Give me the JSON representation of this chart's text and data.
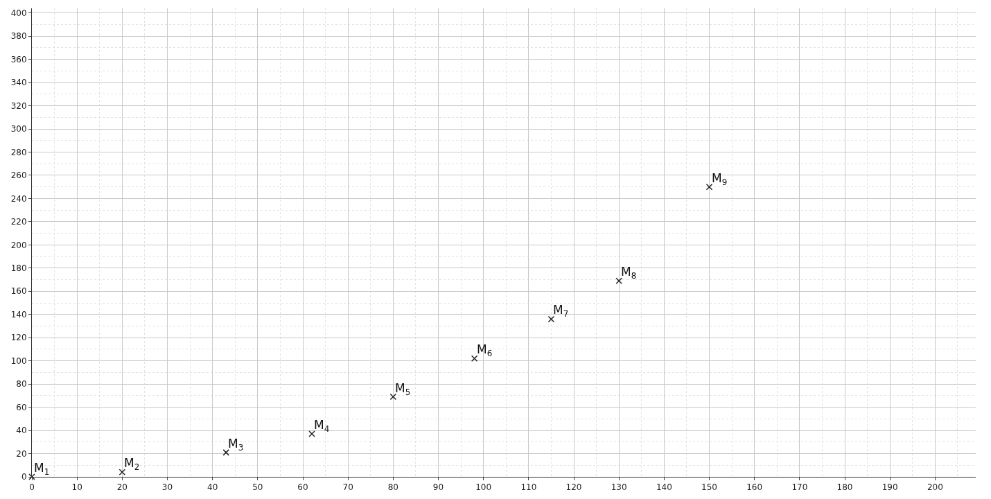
{
  "chart_data": {
    "type": "scatter",
    "marker": "cross",
    "grid": true,
    "x": [
      0,
      20,
      43,
      62,
      80,
      98,
      115,
      130,
      150
    ],
    "values": [
      0,
      4,
      21,
      37,
      69,
      102,
      136,
      169,
      250
    ],
    "color": "#2b1b2b",
    "xlim": [
      0,
      209
    ],
    "ylim": [
      0,
      404
    ],
    "xticks": [
      0,
      10,
      20,
      30,
      40,
      50,
      60,
      70,
      80,
      90,
      100,
      110,
      120,
      130,
      140,
      150,
      160,
      170,
      180,
      190,
      200
    ],
    "yticks": [
      0,
      20,
      40,
      60,
      80,
      100,
      120,
      140,
      160,
      180,
      200,
      220,
      240,
      260,
      280,
      300,
      320,
      340,
      360,
      380,
      400
    ],
    "annotations": [
      {
        "text": "M$_{1}$",
        "x": 0,
        "y": 0
      },
      {
        "text": "M$_{2}$",
        "x": 20,
        "y": 4
      },
      {
        "text": "M$_{3}$",
        "x": 43,
        "y": 21
      },
      {
        "text": "M$_{4}$",
        "x": 62,
        "y": 37
      },
      {
        "text": "M$_{5}$",
        "x": 80,
        "y": 69
      },
      {
        "text": "M$_{6}$",
        "x": 98,
        "y": 102
      },
      {
        "text": "M$_{7}$",
        "x": 115,
        "y": 136
      },
      {
        "text": "M$_{8}$",
        "x": 130,
        "y": 169
      },
      {
        "text": "M$_{9}$",
        "x": 150,
        "y": 250
      }
    ]
  }
}
